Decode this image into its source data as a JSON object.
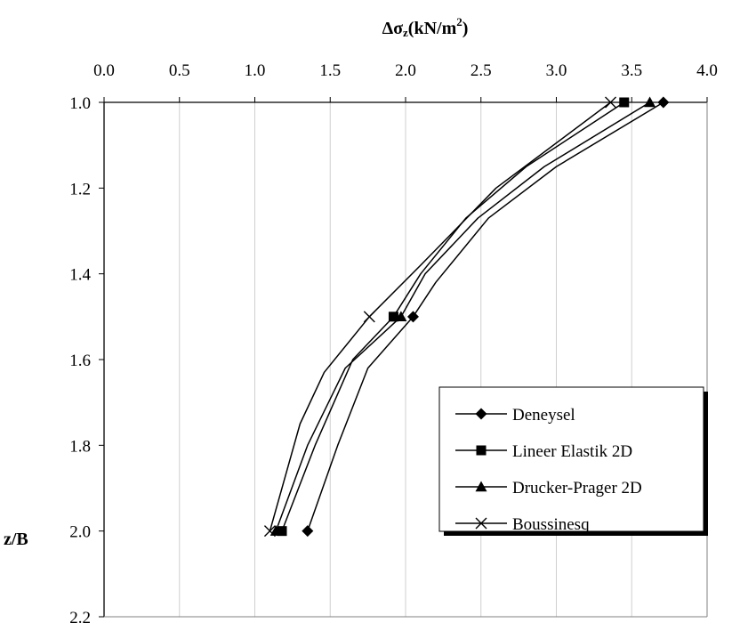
{
  "chart_data": {
    "type": "line",
    "title": "",
    "xlabel": {
      "prefix": "Δσ",
      "sub": "z",
      "rest": "(kN/m",
      "sup": "2",
      "close": ")"
    },
    "ylabel": "z/B",
    "x_axis_position": "top",
    "y_axis_reversed": true,
    "xlim": [
      0.0,
      4.0
    ],
    "ylim": [
      1.0,
      2.2
    ],
    "x_ticks": [
      "0.0",
      "0.5",
      "1.0",
      "1.5",
      "2.0",
      "2.5",
      "3.0",
      "3.5",
      "4.0"
    ],
    "y_ticks": [
      "1.0",
      "1.2",
      "1.4",
      "1.6",
      "1.8",
      "2.0",
      "2.2"
    ],
    "grid": {
      "vertical": true,
      "horizontal": false
    },
    "legend_position": "bottom-right",
    "series": [
      {
        "name": "Deneysel",
        "marker": "diamond",
        "x": [
          3.71,
          2.05,
          1.35
        ],
        "y": [
          1.0,
          1.5,
          2.0
        ],
        "smooth_x": [
          3.71,
          3.0,
          2.55,
          2.2,
          2.05,
          1.75,
          1.55,
          1.35
        ],
        "smooth_y": [
          1.0,
          1.15,
          1.27,
          1.42,
          1.5,
          1.62,
          1.8,
          2.0
        ]
      },
      {
        "name": "Lineer Elastik 2D",
        "marker": "square",
        "x": [
          3.45,
          1.92,
          1.18
        ],
        "y": [
          1.0,
          1.5,
          2.0
        ],
        "smooth_x": [
          3.45,
          2.8,
          2.4,
          2.1,
          1.92,
          1.65,
          1.4,
          1.18
        ],
        "smooth_y": [
          1.0,
          1.15,
          1.27,
          1.4,
          1.5,
          1.6,
          1.8,
          2.0
        ]
      },
      {
        "name": "Drucker-Prager 2D",
        "marker": "triangle",
        "x": [
          3.62,
          1.97,
          1.14
        ],
        "y": [
          1.0,
          1.5,
          2.0
        ],
        "smooth_x": [
          3.62,
          2.92,
          2.48,
          2.13,
          1.97,
          1.6,
          1.35,
          1.14
        ],
        "smooth_y": [
          1.0,
          1.15,
          1.27,
          1.4,
          1.5,
          1.62,
          1.8,
          2.0
        ]
      },
      {
        "name": "Boussinesq",
        "marker": "x",
        "x": [
          3.36,
          1.76,
          1.1
        ],
        "y": [
          1.0,
          1.5,
          2.0
        ],
        "smooth_x": [
          3.36,
          2.6,
          2.1,
          1.76,
          1.46,
          1.3,
          1.1
        ],
        "smooth_y": [
          1.0,
          1.2,
          1.38,
          1.5,
          1.63,
          1.75,
          2.0
        ]
      }
    ]
  }
}
